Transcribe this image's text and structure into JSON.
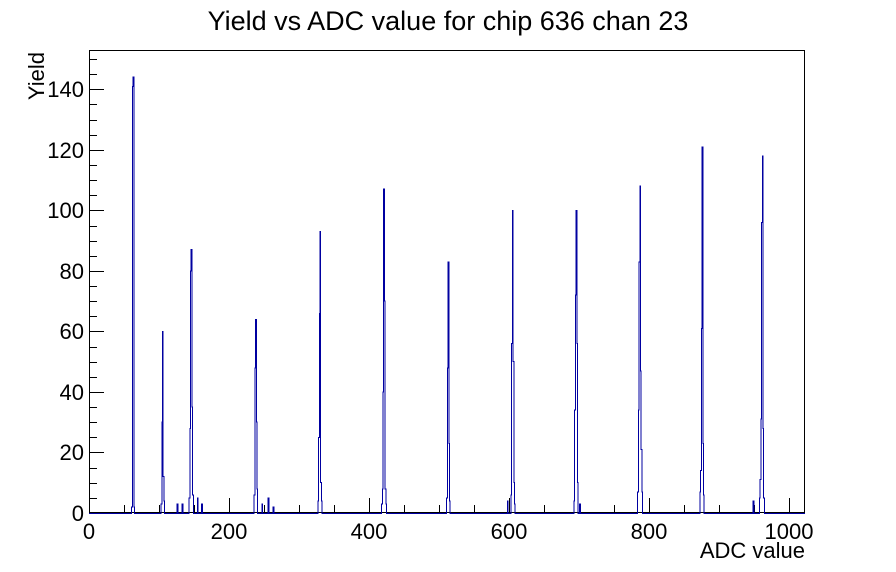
{
  "chart_data": {
    "type": "bar",
    "title": "Yield vs ADC value for chip 636 chan 23",
    "xlabel": "ADC value",
    "ylabel": "Yield",
    "xlim": [
      0,
      1023
    ],
    "ylim": [
      0,
      153
    ],
    "grid": false,
    "legend": false,
    "x_major_ticks": [
      0,
      200,
      400,
      600,
      800,
      1000
    ],
    "x_minor_step": 50,
    "y_major_ticks": [
      0,
      20,
      40,
      60,
      80,
      100,
      120,
      140
    ],
    "y_minor_step": 5,
    "line_color": "#0000a0",
    "frame_color": "#000000",
    "bin_width": 1,
    "bins": [
      [
        61,
        2
      ],
      [
        62,
        141
      ],
      [
        63,
        144
      ],
      [
        64,
        2
      ],
      [
        103,
        3
      ],
      [
        104,
        30
      ],
      [
        105,
        60
      ],
      [
        106,
        12
      ],
      [
        107,
        4
      ],
      [
        126,
        3
      ],
      [
        133,
        3
      ],
      [
        143,
        5
      ],
      [
        144,
        28
      ],
      [
        145,
        80
      ],
      [
        146,
        87
      ],
      [
        147,
        35
      ],
      [
        148,
        6
      ],
      [
        155,
        5
      ],
      [
        161,
        3
      ],
      [
        236,
        6
      ],
      [
        237,
        48
      ],
      [
        238,
        64
      ],
      [
        239,
        30
      ],
      [
        240,
        8
      ],
      [
        247,
        3
      ],
      [
        256,
        5
      ],
      [
        263,
        2
      ],
      [
        327,
        4
      ],
      [
        328,
        25
      ],
      [
        329,
        66
      ],
      [
        330,
        93
      ],
      [
        331,
        10
      ],
      [
        332,
        4
      ],
      [
        418,
        3
      ],
      [
        419,
        8
      ],
      [
        420,
        40
      ],
      [
        421,
        107
      ],
      [
        422,
        70
      ],
      [
        423,
        8
      ],
      [
        424,
        3
      ],
      [
        511,
        5
      ],
      [
        512,
        48
      ],
      [
        513,
        83
      ],
      [
        514,
        23
      ],
      [
        515,
        4
      ],
      [
        598,
        4
      ],
      [
        603,
        6
      ],
      [
        604,
        56
      ],
      [
        605,
        100
      ],
      [
        606,
        50
      ],
      [
        607,
        10
      ],
      [
        608,
        3
      ],
      [
        693,
        4
      ],
      [
        694,
        34
      ],
      [
        695,
        72
      ],
      [
        696,
        100
      ],
      [
        697,
        56
      ],
      [
        698,
        10
      ],
      [
        701,
        3
      ],
      [
        784,
        7
      ],
      [
        785,
        34
      ],
      [
        786,
        83
      ],
      [
        787,
        108
      ],
      [
        788,
        47
      ],
      [
        789,
        21
      ],
      [
        790,
        7
      ],
      [
        873,
        7
      ],
      [
        874,
        14
      ],
      [
        875,
        61
      ],
      [
        876,
        121
      ],
      [
        877,
        23
      ],
      [
        878,
        6
      ],
      [
        949,
        4
      ],
      [
        958,
        5
      ],
      [
        959,
        11
      ],
      [
        960,
        31
      ],
      [
        961,
        96
      ],
      [
        962,
        118
      ],
      [
        963,
        28
      ],
      [
        964,
        5
      ]
    ]
  }
}
